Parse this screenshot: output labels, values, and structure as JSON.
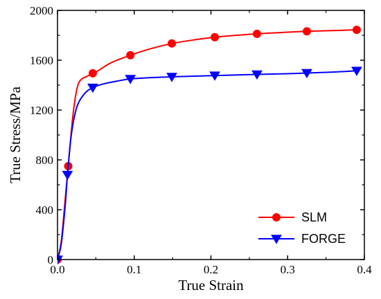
{
  "chart_data": {
    "type": "line",
    "xlabel": "True Strain",
    "ylabel": "True Stress/MPa",
    "xlim": [
      0.0,
      0.4
    ],
    "ylim": [
      0,
      2000
    ],
    "x_ticks": [
      "0.0",
      "0.1",
      "0.2",
      "0.3",
      "0.4"
    ],
    "y_ticks": [
      "0",
      "400",
      "800",
      "1200",
      "1600",
      "2000"
    ],
    "grid": false,
    "legend_position": "bottom-right",
    "series": [
      {
        "name": "SLM",
        "color": "#ff0000",
        "marker": "circle",
        "curve": [
          [
            0,
            0
          ],
          [
            0.005,
            150
          ],
          [
            0.01,
            480
          ],
          [
            0.015,
            820
          ],
          [
            0.02,
            1150
          ],
          [
            0.025,
            1360
          ],
          [
            0.03,
            1440
          ],
          [
            0.04,
            1475
          ],
          [
            0.05,
            1505
          ],
          [
            0.07,
            1580
          ],
          [
            0.095,
            1640
          ],
          [
            0.12,
            1690
          ],
          [
            0.15,
            1735
          ],
          [
            0.18,
            1765
          ],
          [
            0.205,
            1785
          ],
          [
            0.24,
            1803
          ],
          [
            0.26,
            1812
          ],
          [
            0.3,
            1825
          ],
          [
            0.325,
            1832
          ],
          [
            0.36,
            1838
          ],
          [
            0.39,
            1844
          ]
        ],
        "markers": [
          [
            0,
            0
          ],
          [
            0.014,
            750
          ],
          [
            0.046,
            1495
          ],
          [
            0.095,
            1640
          ],
          [
            0.149,
            1735
          ],
          [
            0.205,
            1785
          ],
          [
            0.26,
            1812
          ],
          [
            0.325,
            1832
          ],
          [
            0.39,
            1844
          ]
        ]
      },
      {
        "name": "FORGE",
        "color": "#0000ff",
        "marker": "triangle-down",
        "curve": [
          [
            0,
            0
          ],
          [
            0.005,
            130
          ],
          [
            0.01,
            430
          ],
          [
            0.013,
            680
          ],
          [
            0.018,
            1000
          ],
          [
            0.025,
            1220
          ],
          [
            0.035,
            1330
          ],
          [
            0.046,
            1380
          ],
          [
            0.06,
            1410
          ],
          [
            0.08,
            1435
          ],
          [
            0.095,
            1450
          ],
          [
            0.12,
            1460
          ],
          [
            0.15,
            1467
          ],
          [
            0.2,
            1476
          ],
          [
            0.26,
            1486
          ],
          [
            0.3,
            1492
          ],
          [
            0.325,
            1497
          ],
          [
            0.36,
            1505
          ],
          [
            0.39,
            1515
          ]
        ],
        "markers": [
          [
            0,
            0
          ],
          [
            0.013,
            680
          ],
          [
            0.046,
            1380
          ],
          [
            0.095,
            1450
          ],
          [
            0.149,
            1467
          ],
          [
            0.205,
            1477
          ],
          [
            0.26,
            1486
          ],
          [
            0.325,
            1497
          ],
          [
            0.39,
            1515
          ]
        ]
      }
    ]
  }
}
